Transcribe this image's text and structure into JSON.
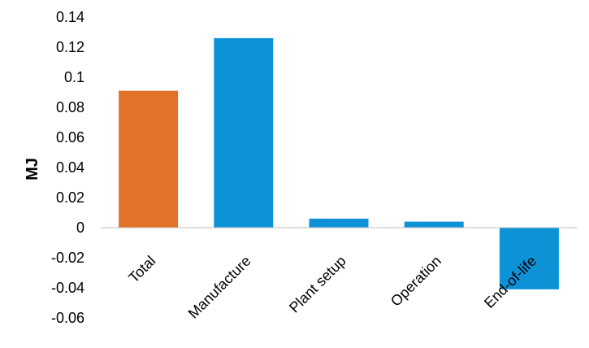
{
  "chart_data": {
    "type": "bar",
    "title": "",
    "xlabel": "",
    "ylabel": "MJ",
    "categories": [
      "Total",
      "Manufacture",
      "Plant setup",
      "Operation",
      "End-of-life"
    ],
    "values": [
      0.091,
      0.126,
      0.006,
      0.004,
      -0.041
    ],
    "bar_colors": [
      "#e07328",
      "#0d92d8",
      "#0d92d8",
      "#0d92d8",
      "#0d92d8"
    ],
    "ylim": [
      -0.06,
      0.14
    ],
    "yticks": [
      "0.14",
      "0.12",
      "0.1",
      "0.08",
      "0.06",
      "0.04",
      "0.02",
      "0",
      "-0.02",
      "-0.04",
      "-0.06"
    ],
    "grid": false,
    "legend": "none"
  }
}
